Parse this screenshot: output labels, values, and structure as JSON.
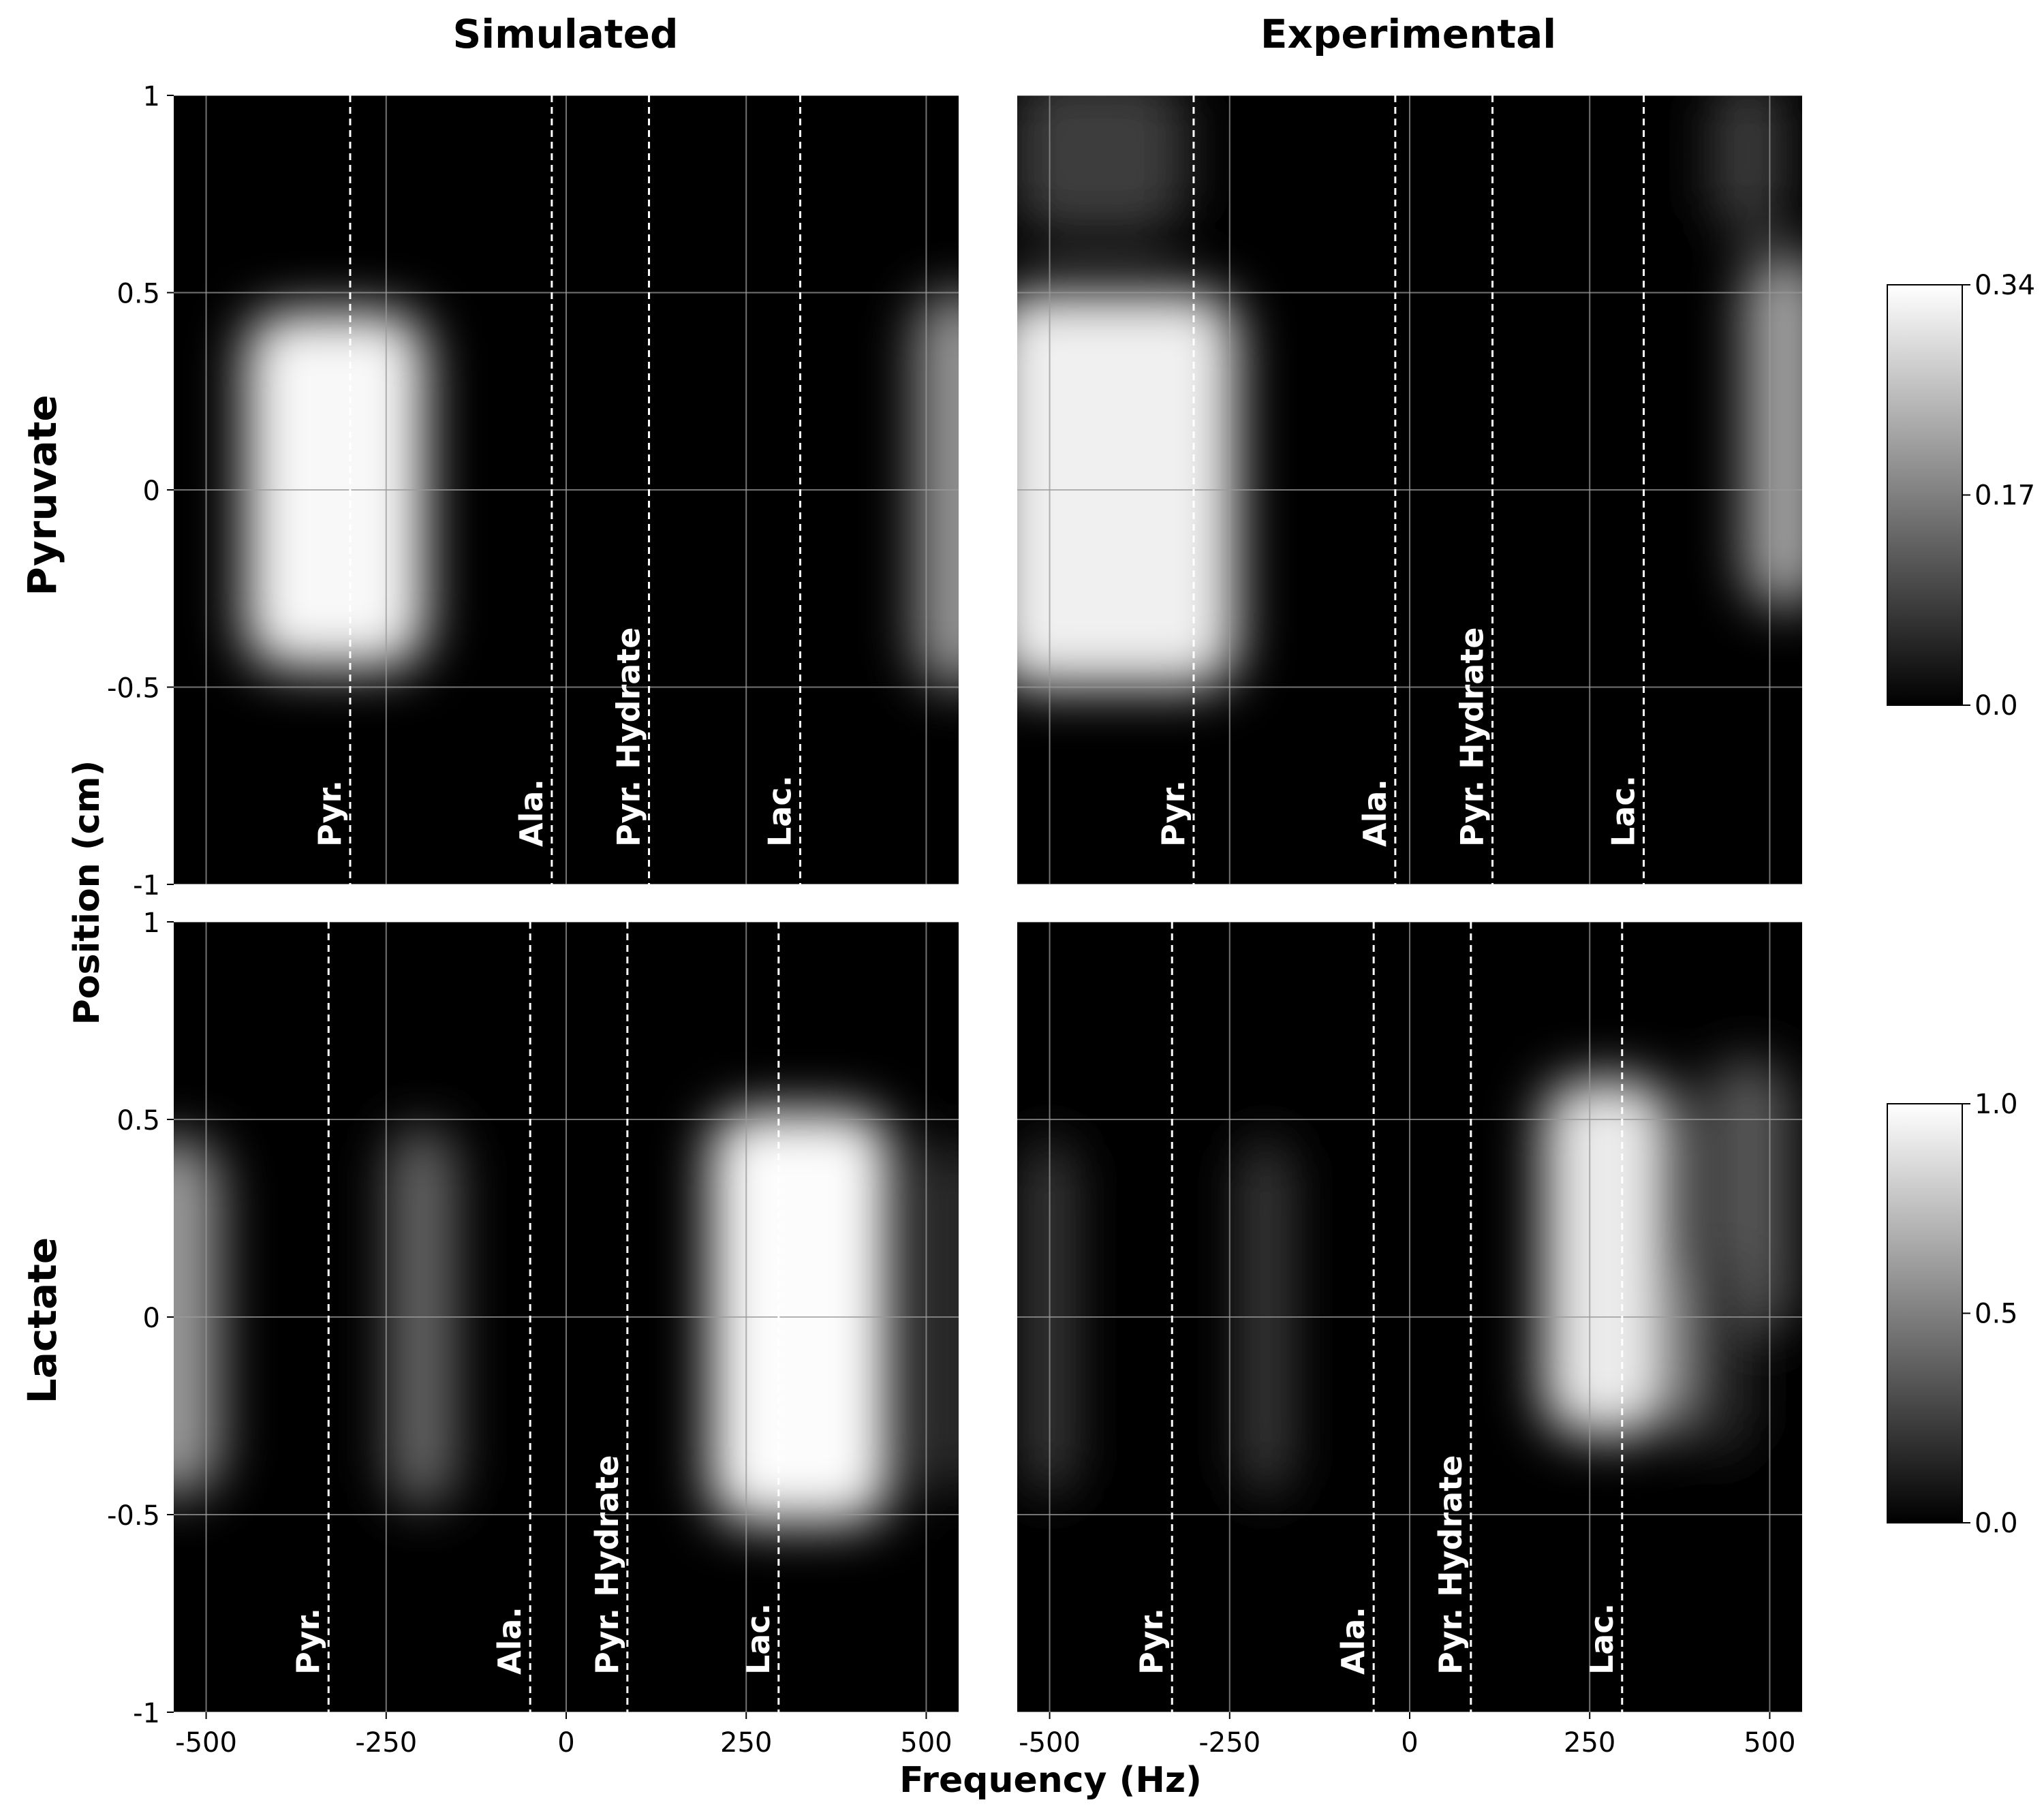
{
  "chart_data": {
    "type": "heatmap",
    "column_titles": [
      "Simulated",
      "Experimental"
    ],
    "row_titles": [
      "Pyruvate",
      "Lactate"
    ],
    "xlabel": "Frequency (Hz)",
    "ylabel": "Position (cm)",
    "xlim": [
      -545,
      545
    ],
    "ylim": [
      -1,
      1
    ],
    "x_ticks": [
      -500,
      -250,
      0,
      250,
      500
    ],
    "x_tick_labels": [
      "-500",
      "-250",
      "0",
      "250",
      "500"
    ],
    "y_ticks": [
      1,
      0.5,
      0,
      -0.5,
      -1
    ],
    "y_tick_labels": [
      "1",
      "0.5",
      "0",
      "-0.5",
      "-1"
    ],
    "grid": true,
    "colormap": "gray",
    "colorbars": [
      {
        "row": "Pyruvate",
        "range": [
          0.0,
          0.34
        ],
        "tick_labels": [
          "0.34",
          "0.17",
          "0.0"
        ]
      },
      {
        "row": "Lactate",
        "range": [
          0.0,
          1.0
        ],
        "tick_labels": [
          "1.0",
          "0.5",
          "0.0"
        ]
      }
    ],
    "markers": [
      {
        "row": "Pyruvate",
        "lines": [
          {
            "label": "Pyr.",
            "x": -300
          },
          {
            "label": "Ala.",
            "x": -20
          },
          {
            "label": "Pyr. Hydrate",
            "x": 115
          },
          {
            "label": "Lac.",
            "x": 325
          }
        ]
      },
      {
        "row": "Lactate",
        "lines": [
          {
            "label": "Pyr.",
            "x": -330
          },
          {
            "label": "Ala.",
            "x": -50
          },
          {
            "label": "Pyr. Hydrate",
            "x": 85
          },
          {
            "label": "Lac.",
            "x": 295
          }
        ]
      }
    ],
    "panels": [
      {
        "row": "Pyruvate",
        "column": "Simulated",
        "blobs": [
          {
            "x_center": -320,
            "x_halfwidth": 125,
            "y_center": 0.0,
            "y_halfwidth": 0.45,
            "value": 0.33
          },
          {
            "x_center": 545,
            "x_halfwidth": 60,
            "y_center": 0.0,
            "y_halfwidth": 0.5,
            "value": 0.2
          }
        ]
      },
      {
        "row": "Pyruvate",
        "column": "Experimental",
        "blobs": [
          {
            "x_center": -410,
            "x_halfwidth": 170,
            "y_center": 0.0,
            "y_halfwidth": 0.5,
            "value": 0.32
          },
          {
            "x_center": -430,
            "x_halfwidth": 120,
            "y_center": 0.85,
            "y_halfwidth": 0.2,
            "value": 0.08
          },
          {
            "x_center": 520,
            "x_halfwidth": 55,
            "y_center": 0.15,
            "y_halfwidth": 0.45,
            "value": 0.22
          },
          {
            "x_center": 470,
            "x_halfwidth": 50,
            "y_center": 0.85,
            "y_halfwidth": 0.2,
            "value": 0.08
          }
        ]
      },
      {
        "row": "Lactate",
        "column": "Simulated",
        "blobs": [
          {
            "x_center": 325,
            "x_halfwidth": 125,
            "y_center": 0.0,
            "y_halfwidth": 0.52,
            "value": 0.99
          },
          {
            "x_center": -200,
            "x_halfwidth": 45,
            "y_center": 0.0,
            "y_halfwidth": 0.48,
            "value": 0.42
          },
          {
            "x_center": -545,
            "x_halfwidth": 65,
            "y_center": 0.0,
            "y_halfwidth": 0.45,
            "value": 0.6
          },
          {
            "x_center": 545,
            "x_halfwidth": 25,
            "y_center": 0.0,
            "y_halfwidth": 0.45,
            "value": 0.3
          }
        ]
      },
      {
        "row": "Lactate",
        "column": "Experimental",
        "blobs": [
          {
            "x_center": 275,
            "x_halfwidth": 90,
            "y_center": 0.15,
            "y_halfwidth": 0.45,
            "value": 0.92
          },
          {
            "x_center": 470,
            "x_halfwidth": 60,
            "y_center": 0.3,
            "y_halfwidth": 0.35,
            "value": 0.35
          },
          {
            "x_center": 430,
            "x_halfwidth": 40,
            "y_center": -0.1,
            "y_halfwidth": 0.25,
            "value": 0.2
          },
          {
            "x_center": -200,
            "x_halfwidth": 30,
            "y_center": 0.0,
            "y_halfwidth": 0.45,
            "value": 0.28
          },
          {
            "x_center": -500,
            "x_halfwidth": 30,
            "y_center": 0.0,
            "y_halfwidth": 0.45,
            "value": 0.28
          }
        ]
      }
    ]
  }
}
